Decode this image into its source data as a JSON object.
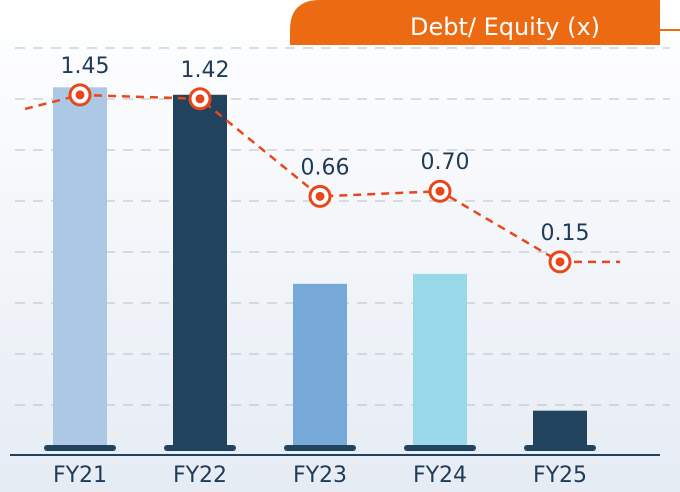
{
  "chart_data": {
    "type": "bar",
    "overlay": "line",
    "title": "Debt/ Equity (x)",
    "categories": [
      "FY21",
      "FY22",
      "FY23",
      "FY24",
      "FY25"
    ],
    "values": [
      1.45,
      1.42,
      0.66,
      0.7,
      0.15
    ],
    "value_labels": [
      "1.45",
      "1.42",
      "0.66",
      "0.70",
      "0.15"
    ],
    "bar_colors": [
      "#adc8e4",
      "#22435e",
      "#76a9d8",
      "#99d8e8",
      "#22435e"
    ],
    "line_color": "#e8471c",
    "ylim": [
      0,
      1.6
    ],
    "y2lim": [
      -1.3,
      1.8
    ]
  }
}
